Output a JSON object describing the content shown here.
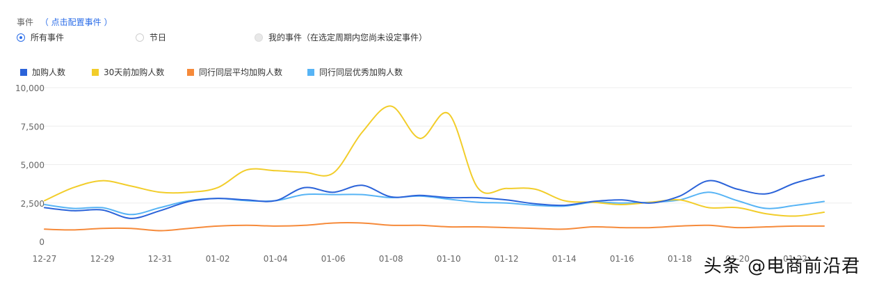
{
  "events": {
    "label": "事件",
    "config_link": "（ 点击配置事件 ）",
    "options": [
      {
        "label": "所有事件",
        "state": "selected"
      },
      {
        "label": "节日",
        "state": "unselected"
      },
      {
        "label": "我的事件（在选定周期内您尚未设定事件）",
        "state": "disabled"
      }
    ]
  },
  "watermark": "头条 @电商前沿君",
  "colors": {
    "grid": "#eeeeee",
    "axis_text": "#666666",
    "accent": "#2b6de8"
  },
  "chart_data": {
    "type": "line",
    "x": [
      "12-27",
      "12-28",
      "12-29",
      "12-30",
      "12-31",
      "01-01",
      "01-02",
      "01-03",
      "01-04",
      "01-05",
      "01-06",
      "01-07",
      "01-08",
      "01-09",
      "01-10",
      "01-11",
      "01-12",
      "01-13",
      "01-14",
      "01-15",
      "01-16",
      "01-17",
      "01-18",
      "01-19",
      "01-20",
      "01-21",
      "01-22",
      "01-23"
    ],
    "x_tick_labels": [
      "12-27",
      "12-29",
      "12-31",
      "01-02",
      "01-04",
      "01-06",
      "01-08",
      "01-10",
      "01-12",
      "01-14",
      "01-16",
      "01-18",
      "01-20",
      "01-22"
    ],
    "y_ticks": [
      "0",
      "2,500",
      "5,000",
      "7,500",
      "10,000"
    ],
    "ylim": [
      0,
      10000
    ],
    "grid": true,
    "legend_position": "top-left",
    "series": [
      {
        "name": "加购人数",
        "color": "#2b63d9",
        "values": [
          2200,
          2000,
          2050,
          1500,
          2000,
          2600,
          2800,
          2700,
          2650,
          3500,
          3200,
          3650,
          2900,
          3000,
          2850,
          2850,
          2700,
          2450,
          2350,
          2600,
          2700,
          2500,
          2950,
          3950,
          3400,
          3100,
          3800,
          4300
        ]
      },
      {
        "name": "30天前加购人数",
        "color": "#f2cd2a",
        "values": [
          2650,
          3500,
          3950,
          3600,
          3200,
          3200,
          3500,
          4650,
          4600,
          4500,
          4450,
          7100,
          8800,
          6700,
          8300,
          3500,
          3450,
          3400,
          2650,
          2550,
          2400,
          2550,
          2700,
          2200,
          2200,
          1800,
          1650,
          1900
        ]
      },
      {
        "name": "同行同层平均加购人数",
        "color": "#f68a3a",
        "values": [
          800,
          750,
          850,
          850,
          700,
          850,
          1000,
          1050,
          1000,
          1050,
          1200,
          1200,
          1050,
          1050,
          950,
          950,
          900,
          850,
          800,
          950,
          900,
          900,
          1000,
          1050,
          900,
          950,
          1000,
          1000
        ]
      },
      {
        "name": "同行同层优秀加购人数",
        "color": "#57b4f5",
        "values": [
          2400,
          2150,
          2200,
          1750,
          2200,
          2650,
          2800,
          2650,
          2650,
          3050,
          3050,
          3050,
          2850,
          2950,
          2750,
          2550,
          2500,
          2350,
          2300,
          2550,
          2500,
          2550,
          2700,
          3200,
          2650,
          2150,
          2350,
          2600
        ]
      }
    ]
  }
}
